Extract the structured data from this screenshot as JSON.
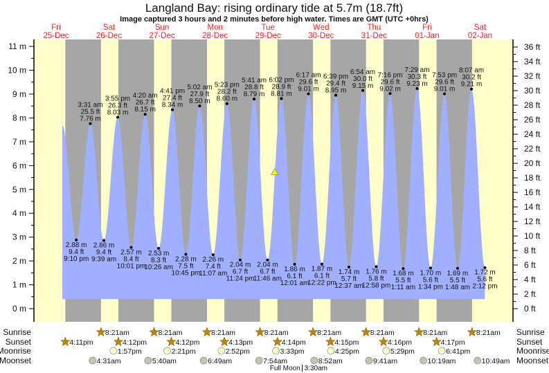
{
  "chart_data": {
    "type": "area",
    "title": "Langland Bay: rising  ordinary tide at 5.7m (18.7ft)",
    "subtitle": "Image captured 3 hours and 2 minutes before high water. Times are GMT (UTC +0hrs)",
    "days": [
      {
        "dow": "Fri",
        "date": "25-Dec"
      },
      {
        "dow": "Sat",
        "date": "26-Dec"
      },
      {
        "dow": "Sun",
        "date": "27-Dec"
      },
      {
        "dow": "Mon",
        "date": "28-Dec"
      },
      {
        "dow": "Tue",
        "date": "29-Dec"
      },
      {
        "dow": "Wed",
        "date": "30-Dec"
      },
      {
        "dow": "Thu",
        "date": "31-Dec"
      },
      {
        "dow": "Fri",
        "date": "01-Jan"
      },
      {
        "dow": "Sat",
        "date": "02-Jan"
      }
    ],
    "y_left": {
      "unit": "m",
      "range": [
        0,
        11
      ],
      "ticks": [
        "0 m",
        "1 m",
        "2 m",
        "3 m",
        "4 m",
        "5 m",
        "6 m",
        "7 m",
        "8 m",
        "9 m",
        "10 m",
        "11 m"
      ]
    },
    "y_right": {
      "unit": "ft",
      "ticks": [
        "0 ft",
        "2 ft",
        "4 ft",
        "6 ft",
        "8 ft",
        "10 ft",
        "12 ft",
        "14 ft",
        "16 ft",
        "18 ft",
        "20 ft",
        "22 ft",
        "24 ft",
        "26 ft",
        "28 ft",
        "30 ft",
        "32 ft",
        "34 ft",
        "36 ft"
      ]
    },
    "curve_start": {
      "day": 0,
      "time": "2:50pm",
      "m": 7.7
    },
    "extremes": [
      {
        "type": "low",
        "day": 0,
        "time": "9:10 pm",
        "m": "2.88 m",
        "ft": "9.4 ft",
        "v": 2.88
      },
      {
        "type": "high",
        "day": 1,
        "time": "3:31 am",
        "m": "7.76 m",
        "ft": "25.5 ft",
        "v": 7.76
      },
      {
        "type": "low",
        "day": 1,
        "time": "9:39 am",
        "m": "2.86 m",
        "ft": "9.4 ft",
        "v": 2.86
      },
      {
        "type": "high",
        "day": 1,
        "time": "3:55 pm",
        "m": "8.03 m",
        "ft": "26.3 ft",
        "v": 8.03
      },
      {
        "type": "low",
        "day": 1,
        "time": "10:01 pm",
        "m": "2.57 m",
        "ft": "8.4 ft",
        "v": 2.57
      },
      {
        "type": "high",
        "day": 2,
        "time": "4:20 am",
        "m": "8.15 m",
        "ft": "26.7 ft",
        "v": 8.15
      },
      {
        "type": "low",
        "day": 2,
        "time": "10:26 am",
        "m": "2.53 m",
        "ft": "8.3 ft",
        "v": 2.53
      },
      {
        "type": "high",
        "day": 2,
        "time": "4:41 pm",
        "m": "8.34 m",
        "ft": "27.4 ft",
        "v": 8.34
      },
      {
        "type": "low",
        "day": 2,
        "time": "10:45 pm",
        "m": "2.28 m",
        "ft": "7.5 ft",
        "v": 2.28
      },
      {
        "type": "high",
        "day": 3,
        "time": "5:02 am",
        "m": "8.50 m",
        "ft": "27.9 ft",
        "v": 8.5
      },
      {
        "type": "low",
        "day": 3,
        "time": "11:07 am",
        "m": "2.26 m",
        "ft": "7.4 ft",
        "v": 2.26
      },
      {
        "type": "high",
        "day": 3,
        "time": "5:23 pm",
        "m": "8.60 m",
        "ft": "28.2 ft",
        "v": 8.6
      },
      {
        "type": "low",
        "day": 3,
        "time": "11:24 pm",
        "m": "2.04 m",
        "ft": "6.7 ft",
        "v": 2.04
      },
      {
        "type": "high",
        "day": 4,
        "time": "5:41 am",
        "m": "8.79 m",
        "ft": "28.8 ft",
        "v": 8.79
      },
      {
        "type": "low",
        "day": 4,
        "time": "11:46 am",
        "m": "2.04 m",
        "ft": "6.7 ft",
        "v": 2.04
      },
      {
        "type": "high",
        "day": 4,
        "time": "6:02 pm",
        "m": "8.81 m",
        "ft": "28.9 ft",
        "v": 8.81
      },
      {
        "type": "low",
        "day": 5,
        "time": "12:01 am",
        "m": "1.86 m",
        "ft": "6.1 ft",
        "v": 1.86
      },
      {
        "type": "high",
        "day": 5,
        "time": "6:17 am",
        "m": "9.01 m",
        "ft": "29.6 ft",
        "v": 9.01
      },
      {
        "type": "low",
        "day": 5,
        "time": "12:22 pm",
        "m": "1.87 m",
        "ft": "6.1 ft",
        "v": 1.87
      },
      {
        "type": "high",
        "day": 5,
        "time": "6:39 pm",
        "m": "8.95 m",
        "ft": "29.4 ft",
        "v": 8.95
      },
      {
        "type": "low",
        "day": 6,
        "time": "12:37 am",
        "m": "1.74 m",
        "ft": "5.7 ft",
        "v": 1.74
      },
      {
        "type": "high",
        "day": 6,
        "time": "6:54 am",
        "m": "9.15 m",
        "ft": "30.0 ft",
        "v": 9.15
      },
      {
        "type": "low",
        "day": 6,
        "time": "12:58 pm",
        "m": "1.76 m",
        "ft": "5.8 ft",
        "v": 1.76
      },
      {
        "type": "high",
        "day": 6,
        "time": "7:16 pm",
        "m": "9.02 m",
        "ft": "29.6 ft",
        "v": 9.02
      },
      {
        "type": "low",
        "day": 7,
        "time": "1:11 am",
        "m": "1.68 m",
        "ft": "5.5 ft",
        "v": 1.68
      },
      {
        "type": "high",
        "day": 7,
        "time": "7:29 am",
        "m": "9.23 m",
        "ft": "30.3 ft",
        "v": 9.23
      },
      {
        "type": "low",
        "day": 7,
        "time": "1:34 pm",
        "m": "1.70 m",
        "ft": "5.6 ft",
        "v": 1.7
      },
      {
        "type": "high",
        "day": 7,
        "time": "7:53 pm",
        "m": "9.01 m",
        "ft": "29.6 ft",
        "v": 9.01
      },
      {
        "type": "low",
        "day": 8,
        "time": "1:48 am",
        "m": "1.69 m",
        "ft": "5.5 ft",
        "v": 1.69
      },
      {
        "type": "high",
        "day": 8,
        "time": "8:07 am",
        "m": "9.21 m",
        "ft": "30.2 ft",
        "v": 9.21
      },
      {
        "type": "low",
        "day": 8,
        "time": "2:12 pm",
        "m": "1.72 m",
        "ft": "5.6 ft",
        "v": 1.72
      }
    ],
    "current": {
      "day": 4,
      "time": "3:00 pm",
      "v": 5.7
    },
    "rows": {
      "labels": {
        "sunrise": "Sunrise",
        "sunset": "Sunset",
        "moonrise": "Moonrise",
        "moonset": "Moonset"
      },
      "sunrise": [
        {
          "day": 1,
          "time": "8:21am"
        },
        {
          "day": 2,
          "time": "8:21am"
        },
        {
          "day": 3,
          "time": "8:21am"
        },
        {
          "day": 4,
          "time": "8:21am"
        },
        {
          "day": 5,
          "time": "8:21am"
        },
        {
          "day": 6,
          "time": "8:21am"
        },
        {
          "day": 7,
          "time": "8:21am"
        },
        {
          "day": 8,
          "time": "8:21am"
        }
      ],
      "sunset": [
        {
          "day": 0,
          "time": "4:11pm"
        },
        {
          "day": 1,
          "time": "4:12pm"
        },
        {
          "day": 2,
          "time": "4:12pm"
        },
        {
          "day": 3,
          "time": "4:13pm"
        },
        {
          "day": 4,
          "time": "4:14pm"
        },
        {
          "day": 5,
          "time": "4:15pm"
        },
        {
          "day": 6,
          "time": "4:16pm"
        },
        {
          "day": 7,
          "time": "4:17pm"
        }
      ],
      "moonrise": [
        {
          "day": 1,
          "time": "1:57pm"
        },
        {
          "day": 2,
          "time": "2:21pm"
        },
        {
          "day": 3,
          "time": "2:52pm"
        },
        {
          "day": 4,
          "time": "3:33pm"
        },
        {
          "day": 5,
          "time": "4:25pm"
        },
        {
          "day": 6,
          "time": "5:29pm"
        },
        {
          "day": 7,
          "time": "6:41pm"
        }
      ],
      "moonset": [
        {
          "day": 1,
          "time": "4:31am"
        },
        {
          "day": 2,
          "time": "5:40am"
        },
        {
          "day": 3,
          "time": "6:49am"
        },
        {
          "day": 4,
          "time": "7:54am"
        },
        {
          "day": 5,
          "time": "8:52am"
        },
        {
          "day": 6,
          "time": "9:41am"
        },
        {
          "day": 7,
          "time": "10:19am"
        },
        {
          "day": 8,
          "time": "10:49am"
        }
      ]
    },
    "moon_phase": {
      "label": "Full Moon",
      "time": "3:30am",
      "day": 5
    },
    "colors": {
      "day": "#ffffcc",
      "night": "#a6a6a6",
      "tide": "#a0b0ff",
      "day_label": "#ff2020",
      "sun": "#b8860b",
      "moonrise": "#ffffc8",
      "moonset": "#c4c4b4"
    }
  }
}
